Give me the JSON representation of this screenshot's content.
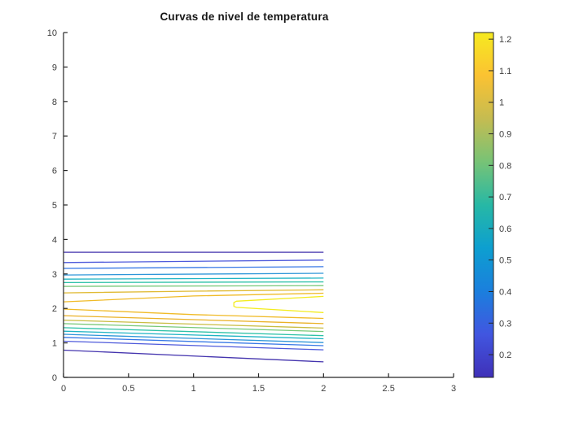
{
  "figure": {
    "background": "#ffffff"
  },
  "chart_data": {
    "type": "contour",
    "title": "Curvas de nivel de temperatura",
    "xlabel": "",
    "ylabel": "",
    "xlim": [
      0,
      3
    ],
    "ylim": [
      0,
      10
    ],
    "xticks": [
      0,
      0.5,
      1,
      1.5,
      2,
      2.5,
      3
    ],
    "xtick_labels": [
      "0",
      "0.5",
      "1",
      "1.5",
      "2",
      "2.5",
      "3"
    ],
    "yticks": [
      0,
      1,
      2,
      3,
      4,
      5,
      6,
      7,
      8,
      9,
      10
    ],
    "ytick_labels": [
      "0",
      "1",
      "2",
      "3",
      "4",
      "5",
      "6",
      "7",
      "8",
      "9",
      "10"
    ],
    "grid": false,
    "box": false,
    "axis_color": "#262626",
    "tick_label_color": "#3d3d3d",
    "levels": [
      0.2,
      0.3,
      0.4,
      0.5,
      0.6,
      0.7,
      0.8,
      0.9,
      1.0,
      1.1,
      1.2
    ],
    "colorbar": {
      "position": "right",
      "vmin": 0.128,
      "vmax": 1.221,
      "ticks": [
        0.2,
        0.3,
        0.4,
        0.5,
        0.6,
        0.7,
        0.8,
        0.9,
        1.0,
        1.1,
        1.2
      ],
      "tick_labels": [
        "0.2",
        "0.3",
        "0.4",
        "0.5",
        "0.6",
        "0.7",
        "0.8",
        "0.9",
        "1",
        "1.1",
        "1.2"
      ],
      "gradient_stops": [
        "#3f30b8",
        "#4156e0",
        "#1b7fdd",
        "#0d9fd0",
        "#27b8a5",
        "#77c376",
        "#c5bc51",
        "#fbc232",
        "#f6ea20"
      ]
    },
    "contours": [
      {
        "level": 0.2,
        "branch": "top",
        "color": "#4434ae",
        "points": [
          [
            0,
            3.63
          ],
          [
            2,
            3.63
          ]
        ]
      },
      {
        "level": 0.3,
        "branch": "top",
        "color": "#4e5adb",
        "points": [
          [
            0,
            3.33
          ],
          [
            2,
            3.4
          ]
        ]
      },
      {
        "level": 0.4,
        "branch": "top",
        "color": "#3778e6",
        "points": [
          [
            0,
            3.16
          ],
          [
            2,
            3.21
          ]
        ]
      },
      {
        "level": 0.5,
        "branch": "top",
        "color": "#2e96d9",
        "points": [
          [
            0,
            2.97
          ],
          [
            2,
            3.02
          ]
        ]
      },
      {
        "level": 0.6,
        "branch": "top",
        "color": "#1fb4c4",
        "points": [
          [
            0,
            2.85
          ],
          [
            2,
            2.88
          ]
        ]
      },
      {
        "level": 0.7,
        "branch": "top",
        "color": "#2dc2a7",
        "points": [
          [
            0,
            2.75
          ],
          [
            2,
            2.77
          ]
        ]
      },
      {
        "level": 0.8,
        "branch": "top",
        "color": "#77c878",
        "points": [
          [
            0,
            2.64
          ],
          [
            2,
            2.66
          ]
        ]
      },
      {
        "level": 0.9,
        "branch": "top",
        "color": "#e0ba33",
        "points": [
          [
            0,
            2.45
          ],
          [
            1,
            2.5
          ],
          [
            2,
            2.54
          ]
        ]
      },
      {
        "level": 1.0,
        "branch": "top",
        "color": "#f0bb28",
        "points": [
          [
            0,
            2.19
          ],
          [
            1,
            2.36
          ],
          [
            2,
            2.44
          ]
        ]
      },
      {
        "level": 1.2,
        "branch": "wedge",
        "color": "#f3ec1e",
        "points": [
          [
            2,
            2.35
          ],
          [
            1.33,
            2.21
          ],
          [
            1.31,
            2.17
          ],
          [
            1.31,
            2.06
          ],
          [
            1.33,
            2.03
          ],
          [
            2,
            1.88
          ]
        ]
      },
      {
        "level": 1.1,
        "branch": "bottom",
        "color": "#f0bb28",
        "points": [
          [
            0,
            1.98
          ],
          [
            1,
            1.82
          ],
          [
            2,
            1.71
          ]
        ]
      },
      {
        "level": 1.0,
        "branch": "bottom",
        "color": "#eab126",
        "points": [
          [
            0,
            1.79
          ],
          [
            2,
            1.56
          ]
        ]
      },
      {
        "level": 0.9,
        "branch": "bottom",
        "color": "#c9bd42",
        "points": [
          [
            0,
            1.66
          ],
          [
            2,
            1.43
          ]
        ]
      },
      {
        "level": 0.8,
        "branch": "bottom",
        "color": "#77c878",
        "points": [
          [
            0,
            1.56
          ],
          [
            2,
            1.33
          ]
        ]
      },
      {
        "level": 0.7,
        "branch": "bottom",
        "color": "#2dc2a7",
        "points": [
          [
            0,
            1.44
          ],
          [
            2,
            1.21
          ]
        ]
      },
      {
        "level": 0.6,
        "branch": "bottom",
        "color": "#1fb4c4",
        "points": [
          [
            0,
            1.34
          ],
          [
            2,
            1.12
          ]
        ]
      },
      {
        "level": 0.5,
        "branch": "bottom",
        "color": "#2e96d9",
        "points": [
          [
            0,
            1.25
          ],
          [
            2,
            1.01
          ]
        ]
      },
      {
        "level": 0.4,
        "branch": "bottom",
        "color": "#3778e6",
        "points": [
          [
            0,
            1.16
          ],
          [
            2,
            0.92
          ]
        ]
      },
      {
        "level": 0.3,
        "branch": "bottom",
        "color": "#4e5adb",
        "points": [
          [
            0,
            1.05
          ],
          [
            2,
            0.8
          ]
        ]
      },
      {
        "level": 0.2,
        "branch": "bottom",
        "color": "#4434ae",
        "points": [
          [
            0,
            0.79
          ],
          [
            2,
            0.45
          ]
        ]
      }
    ]
  }
}
